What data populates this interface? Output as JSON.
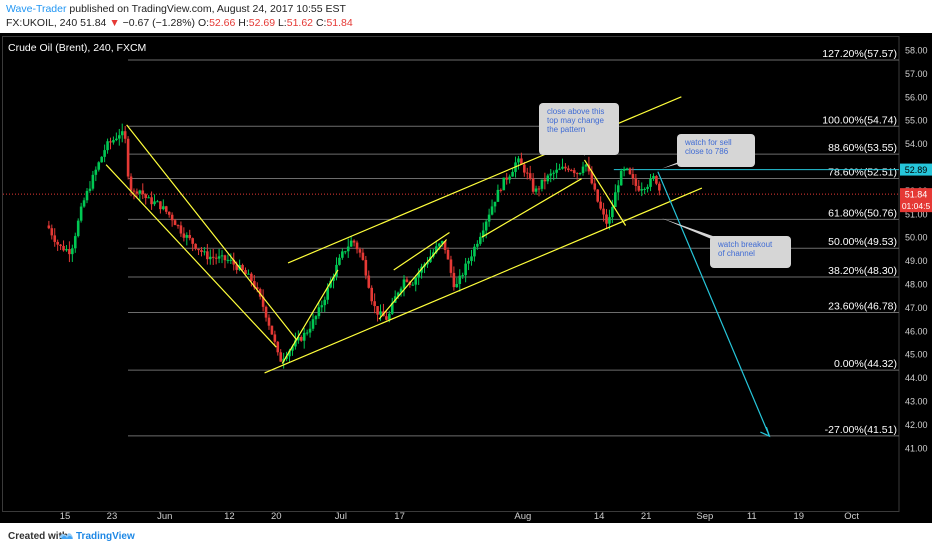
{
  "header": {
    "publisher": "Wave-Trader",
    "published_text": " published on TradingView.com, August 24, 2017 10:55 EST",
    "symbol": "FX:UKOIL, 240",
    "last": "51.84",
    "arrow": "▼",
    "change": "−0.67 (−1.28%)",
    "o_label": "O:",
    "o_value": "52.66",
    "h_label": "H:",
    "h_value": "52.69",
    "l_label": "L:",
    "l_value": "51.62",
    "c_label": "C:",
    "c_value": "51.84"
  },
  "chart_title": "Crude Oil (Brent), 240, FXCM",
  "footer": {
    "created_with": "Created with",
    "brand": "TradingView"
  },
  "colors": {
    "background": "#000000",
    "up": "#00c853",
    "down": "#e53935",
    "channel": "#ffff3b",
    "forecast": "#26c6da",
    "fib": "#6d6d6d",
    "price_tag": "#e53935",
    "level_tag": "#26c6da",
    "note_bg": "#d6d6d6",
    "note_text": "#3f6bd4"
  },
  "chart_data": {
    "type": "candlestick",
    "y_range": [
      41.0,
      58.7
    ],
    "y_ticks": [
      "58.00",
      "57.00",
      "56.00",
      "55.00",
      "54.00",
      "53.00",
      "52.00",
      "51.00",
      "50.00",
      "49.00",
      "48.00",
      "47.00",
      "46.00",
      "45.00",
      "44.00",
      "43.00",
      "42.00",
      "41.00"
    ],
    "x_labels": [
      {
        "day": 0,
        "label": "15"
      },
      {
        "day": 8,
        "label": "23"
      },
      {
        "day": 17,
        "label": "Jun"
      },
      {
        "day": 28,
        "label": "12"
      },
      {
        "day": 36,
        "label": "20"
      },
      {
        "day": 47,
        "label": "Jul"
      },
      {
        "day": 57,
        "label": "17"
      },
      {
        "day": 78,
        "label": "Aug"
      },
      {
        "day": 91,
        "label": "14"
      },
      {
        "day": 99,
        "label": "21"
      },
      {
        "day": 109,
        "label": "Sep"
      },
      {
        "day": 117,
        "label": "11"
      },
      {
        "day": 125,
        "label": "19"
      },
      {
        "day": 134,
        "label": "Oct"
      }
    ],
    "fib_levels": [
      {
        "label": "127.20%(57.57)",
        "value": 57.57
      },
      {
        "label": "100.00%(54.74)",
        "value": 54.74
      },
      {
        "label": "88.60%(53.55)",
        "value": 53.55
      },
      {
        "label": "78.60%(52.51)",
        "value": 52.51
      },
      {
        "label": "61.80%(50.76)",
        "value": 50.76
      },
      {
        "label": "50.00%(49.53)",
        "value": 49.53
      },
      {
        "label": "38.20%(48.30)",
        "value": 48.3
      },
      {
        "label": "23.60%(46.78)",
        "value": 46.78
      },
      {
        "label": "0.00%(44.32)",
        "value": 44.32
      },
      {
        "label": "-27.00%(41.51)",
        "value": 41.51
      }
    ],
    "current_price": {
      "label": "51.84",
      "value": 51.84,
      "countdown": "01:04:5"
    },
    "level_line": {
      "label": "52.89",
      "value": 52.89,
      "start_day": 93.5
    },
    "price_path": [
      [
        -3,
        50.5
      ],
      [
        -1,
        49.6
      ],
      [
        1,
        49.4
      ],
      [
        3,
        51.4
      ],
      [
        5,
        52.7
      ],
      [
        7,
        53.9
      ],
      [
        8,
        54.1
      ],
      [
        9.5,
        54.5
      ],
      [
        10.3,
        54.1
      ],
      [
        10.8,
        52.6
      ],
      [
        11.5,
        51.8
      ],
      [
        12.5,
        52.1
      ],
      [
        14,
        51.6
      ],
      [
        16,
        51.4
      ],
      [
        18,
        50.9
      ],
      [
        20,
        50.2
      ],
      [
        22,
        49.7
      ],
      [
        24,
        49.2
      ],
      [
        26,
        49.1
      ],
      [
        28,
        49.0
      ],
      [
        30,
        48.6
      ],
      [
        32,
        48.1
      ],
      [
        34,
        46.9
      ],
      [
        35.5,
        45.7
      ],
      [
        36.5,
        44.7
      ],
      [
        37.5,
        45.0
      ],
      [
        39,
        45.4
      ],
      [
        41,
        45.9
      ],
      [
        43,
        46.7
      ],
      [
        44.5,
        47.6
      ],
      [
        46,
        48.6
      ],
      [
        47.5,
        49.4
      ],
      [
        49,
        49.9
      ],
      [
        50.5,
        49.2
      ],
      [
        51.5,
        48.3
      ],
      [
        52.5,
        47.1
      ],
      [
        53.5,
        46.7
      ],
      [
        55,
        46.5
      ],
      [
        56.5,
        47.6
      ],
      [
        58,
        48.3
      ],
      [
        59,
        48.0
      ],
      [
        60.5,
        48.6
      ],
      [
        62,
        49.1
      ],
      [
        63.5,
        49.6
      ],
      [
        64.5,
        49.8
      ],
      [
        65.5,
        48.7
      ],
      [
        66.5,
        47.8
      ],
      [
        68,
        48.6
      ],
      [
        70,
        49.7
      ],
      [
        71.5,
        50.6
      ],
      [
        73,
        51.5
      ],
      [
        74.5,
        52.3
      ],
      [
        76,
        52.8
      ],
      [
        77,
        53.3
      ],
      [
        78.5,
        52.8
      ],
      [
        80,
        51.9
      ],
      [
        81.5,
        52.4
      ],
      [
        83,
        52.7
      ],
      [
        84.5,
        52.9
      ],
      [
        86,
        53.0
      ],
      [
        87.5,
        52.7
      ],
      [
        88.5,
        53.3
      ],
      [
        89.5,
        52.5
      ],
      [
        90.5,
        51.7
      ],
      [
        91.5,
        51.0
      ],
      [
        92.5,
        50.5
      ],
      [
        93.5,
        51.6
      ],
      [
        94.5,
        52.6
      ],
      [
        95.5,
        52.9
      ],
      [
        96.5,
        52.5
      ],
      [
        97.5,
        52.1
      ],
      [
        98.5,
        52.2
      ],
      [
        99.5,
        52.3
      ],
      [
        100.5,
        52.6
      ],
      [
        101.5,
        51.84
      ]
    ],
    "channel_lines": [
      [
        [
          7,
          53.1
        ],
        [
          36,
          45.3
        ]
      ],
      [
        [
          10.5,
          54.8
        ],
        [
          39.5,
          45.6
        ]
      ],
      [
        [
          34,
          44.2
        ],
        [
          108.5,
          52.1
        ]
      ],
      [
        [
          38,
          48.9
        ],
        [
          105,
          56.0
        ]
      ],
      [
        [
          37,
          44.6
        ],
        [
          46.5,
          48.6
        ]
      ],
      [
        [
          53.5,
          46.5
        ],
        [
          65,
          49.9
        ]
      ],
      [
        [
          56,
          48.6
        ],
        [
          65.5,
          50.2
        ]
      ],
      [
        [
          71,
          50.0
        ],
        [
          88,
          52.5
        ]
      ],
      [
        [
          88.5,
          53.3
        ],
        [
          95.5,
          50.5
        ]
      ],
      [
        [
          101,
          52.8
        ],
        [
          120,
          41.5
        ]
      ]
    ],
    "annotations": [
      {
        "lines": [
          "close above this",
          "top may change",
          "the pattern"
        ],
        "anchor": [
          88.5,
          53.3
        ]
      },
      {
        "lines": [
          "watch for sell",
          "close to 786"
        ],
        "anchor": [
          101,
          52.8
        ]
      },
      {
        "lines": [
          "watch breakout",
          "of channel"
        ],
        "anchor": [
          104,
          51.2
        ]
      }
    ]
  }
}
